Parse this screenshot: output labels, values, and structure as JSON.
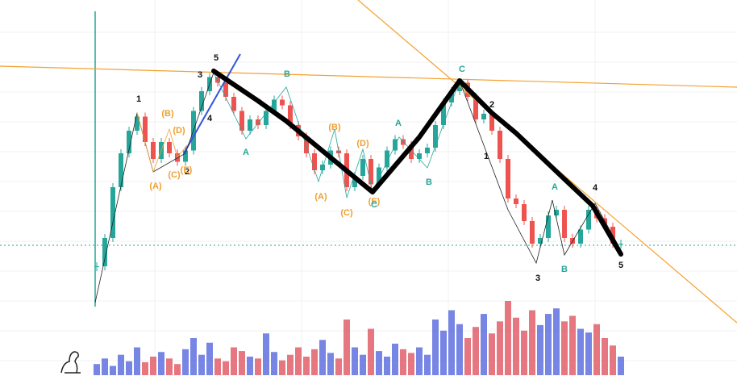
{
  "chart_data": {
    "type": "candlestick",
    "close": [
      20,
      30,
      48,
      60,
      68,
      73,
      64,
      58,
      64,
      60,
      57,
      61,
      75,
      82,
      87,
      85,
      80,
      75,
      68,
      72,
      70,
      75,
      79,
      77,
      70,
      66,
      60,
      54,
      56,
      61,
      60,
      48,
      52,
      58,
      49,
      55,
      61,
      65,
      63,
      58,
      60,
      62,
      70,
      78,
      82,
      85,
      80,
      72,
      74,
      68,
      58,
      44,
      42,
      36,
      28,
      30,
      38,
      40,
      30,
      28,
      33,
      40,
      37,
      34,
      28,
      28
    ],
    "volume": [
      12,
      18,
      10,
      22,
      15,
      30,
      14,
      20,
      25,
      18,
      12,
      28,
      40,
      22,
      35,
      18,
      15,
      30,
      26,
      20,
      18,
      45,
      25,
      16,
      22,
      30,
      20,
      28,
      38,
      24,
      18,
      60,
      30,
      22,
      50,
      26,
      20,
      34,
      28,
      24,
      30,
      22,
      60,
      48,
      70,
      55,
      40,
      52,
      66,
      45,
      58,
      80,
      62,
      48,
      70,
      54,
      66,
      72,
      58,
      64,
      50,
      46,
      55,
      40,
      32,
      20
    ],
    "ylim": [
      0,
      100
    ],
    "vlim": [
      0,
      100
    ],
    "up_color": "#26a69a",
    "down_color": "#ef5350",
    "up_volume_color": "#5566dd",
    "down_volume_color": "#e05560"
  },
  "annotations": [
    "1",
    "(B)",
    "(D)",
    "(A)",
    "(C)",
    "2",
    "(E)",
    "3",
    "4",
    "5",
    "B",
    "A",
    "(B)",
    "(D)",
    "(A)",
    "(C)",
    "(E)",
    "C",
    "A",
    "B",
    "C",
    "2",
    "1",
    "3",
    "A",
    "B",
    "4",
    "5"
  ]
}
